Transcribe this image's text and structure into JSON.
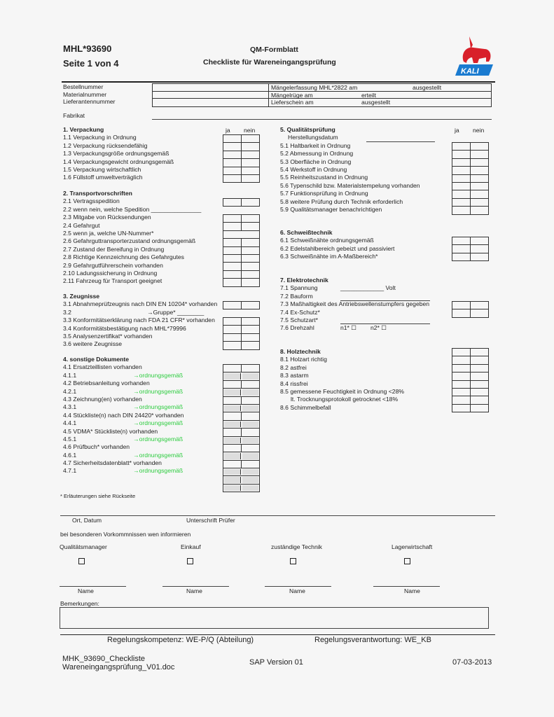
{
  "header": {
    "doc_id": "MHL*93690",
    "page": "Seite 1 von 4",
    "form_type": "QM-Formblatt",
    "title": "Checkliste für Wareneingangsprüfung",
    "logo_text": "KALI",
    "colors": {
      "logo_red": "#d8202a",
      "logo_blue": "#1a7bd0",
      "green_text": "#2ecc40"
    }
  },
  "order": {
    "labels": [
      "Bestellnummer",
      "Materialnummer",
      "Lieferantennummer"
    ],
    "rows": [
      {
        "label": "Mängelerfassung MHL*2822 am",
        "suffix": "ausgestellt"
      },
      {
        "label": "Mängelrüge am",
        "suffix": "erteilt"
      },
      {
        "label": "Lieferschein am",
        "suffix": "ausgestellt"
      }
    ],
    "fabrikat": "Fabrikat"
  },
  "cols": {
    "yes": "ja",
    "no": "nein"
  },
  "s1": {
    "title": "1. Verpackung",
    "items": [
      "1.1 Verpackung in Ordnung",
      "1.2 Verpackung rücksendefähig",
      "1.3 Verpackungsgröße ordnungsgemäß",
      "1.4 Verpackungsgewicht ordnungsgemäß",
      "1.5 Verpackung wirtschaftlich",
      "1.6 Füllstoff umweltverträglich"
    ]
  },
  "s2": {
    "title": "2. Transportvorschriften",
    "items": [
      "2.1 Vertragsspedition",
      "2.2 wenn nein, welche Spedition _______________",
      "2.3 Mitgabe von Rücksendungen",
      "2.4 Gefahrgut",
      "2.5 wenn ja, welche UN-Nummer*",
      "2.6 Gefahrguttransporterzustand ordnungsgemäß",
      "2.7 Zustand der Bereifung in Ordnung",
      "2.8 Richtige Kennzeichnung des Gefahrgutes",
      "2.9 Gefahrgutführerschein vorhanden",
      "2.10 Ladungssicherung in Ordnung",
      "2.11 Fahrzeug für Transport geeignet"
    ]
  },
  "s3": {
    "title": "3. Zeugnisse",
    "items": [
      "3.1 Abnahmeprüfzeugnis nach DIN EN 10204* vorhanden",
      "3.2",
      "3.3 Konformitätserklärung nach FDA 21 CFR* vorhanden",
      "3.4 Konformitätsbestätigung nach MHL*79996",
      "3.5 Analysenzertifikat* vorhanden",
      "3.6 weitere Zeugnisse"
    ],
    "group": "→Gruppe* ________"
  },
  "s4": {
    "title": "4. sonstige Dokumente",
    "items": [
      "4.1 Ersatzteillisten vorhanden",
      "4.1.1",
      "4.2 Betriebsanleitung vorhanden",
      "4.2.1",
      "4.3 Zeichnung(en) vorhanden",
      "4.3.1",
      "4.4 Stückliste(n) nach DIN 24420* vorhanden",
      "4.4.1",
      "4.5 VDMA* Stückliste(n) vorhanden",
      "4.5.1",
      "4.6 Prüfbuch* vorhanden",
      "4.6.1",
      "4.7 Sicherheitsdatenblatt* vorhanden",
      "4.7.1"
    ],
    "ok": "→ordnungsgemäß"
  },
  "footnote": "* Erläuterungen siehe Rückseite",
  "s5": {
    "title": "5. Qualitätsprüfung",
    "items": [
      "Herstellungsdatum",
      "5.1 Haltbarkeit in Ordnung",
      "5.2 Abmessung in Ordnung",
      "5.3 Oberfläche in Ordnung",
      "5.4 Werkstoff in Ordnung",
      "5.5 Reinheitszustand in Ordnung",
      "5.6 Typenschild bzw. Materialstempelung vorhanden",
      "5.7 Funktionsprüfung in Ordnung",
      "5.8 weitere Prüfung durch Technik erforderlich",
      "5.9 Qualitätsmanager benachrichtigen"
    ]
  },
  "s6": {
    "title": "6. Schweißtechnik",
    "items": [
      "6.1 Schweißnähte ordnungsgemäß",
      "6.2 Edelstahlbereich gebeizt und passiviert",
      "6.3 Schweißnähte im A-Maßbereich*"
    ]
  },
  "s7": {
    "title": "7. Elektrotechnik",
    "items": [
      "7.1 Spannung",
      "7.2 Bauform",
      "7.3 Maßhaltigkeit des Antriebswellenstumpfers gegeben",
      "7.4 Ex-Schutz*",
      "7.5 Schutzart*",
      "7.6 Drehzahl"
    ],
    "volt": "_____________ Volt",
    "n1": "n1* ☐",
    "n2": "n2* ☐"
  },
  "s8": {
    "title": "8. Holztechnik",
    "items": [
      "8.1 Holzart richtig",
      "8.2 astfrei",
      "8.3 astarm",
      "8.4 rissfrei",
      "8.5 gemessene Feuchtigkeit in Ordnung <28%",
      "    lt. Trocknungsprotokoll getrocknet <18%",
      "8.6 Schimmelbefall"
    ]
  },
  "sign": {
    "place_date": "Ort, Datum",
    "signature": "Unterschrift Prüfer",
    "inform": "bei besonderen Vorkommnissen wen informieren",
    "roles": [
      "Qualitätsmanager",
      "Einkauf",
      "zuständige Technik",
      "Lagerwirtschaft"
    ],
    "name": "Name",
    "remarks": "Bemerkungen:"
  },
  "competence": {
    "left": "Regelungskompetenz:  WE-P/Q (Abteilung)",
    "right": "Regelungsverantwortung:  WE_KB"
  },
  "footer": {
    "file1": "MHK_93690_Checkliste",
    "file2": "Wareneingangsprüfung_V01.doc",
    "version": "SAP Version 01",
    "date": "07-03-2013"
  }
}
